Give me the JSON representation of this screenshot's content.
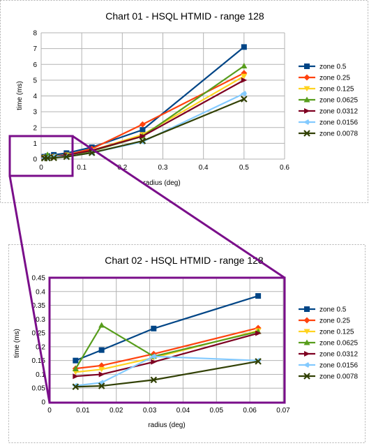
{
  "colors": {
    "border": "#b0b0b0",
    "grid": "#b3b3b3",
    "axis": "#b3b3b3",
    "callout": "#7a0e8a",
    "text": "#000000"
  },
  "chart_data": [
    {
      "type": "line",
      "title": "Chart 01 - HSQL HTMID - range 128",
      "xlabel": "radius (deg)",
      "ylabel": "time (ms)",
      "xlim": [
        0,
        0.6
      ],
      "ylim": [
        0,
        8
      ],
      "xticks": [
        "0",
        "0.1",
        "0.2",
        "0.3",
        "0.4",
        "0.5",
        "0.6"
      ],
      "yticks": [
        "0",
        "1",
        "2",
        "3",
        "4",
        "5",
        "6",
        "7",
        "8"
      ],
      "grid": true,
      "legend": "right",
      "series": [
        {
          "name": "zone 0.5",
          "color": "#004586",
          "marker": "square",
          "x": [
            0.0078,
            0.0156,
            0.0312,
            0.0625,
            0.125,
            0.25,
            0.5
          ],
          "y": [
            0.15,
            0.19,
            0.27,
            0.38,
            0.75,
            1.85,
            7.1
          ]
        },
        {
          "name": "zone 0.25",
          "color": "#ff420e",
          "marker": "diamond",
          "x": [
            0.0078,
            0.0156,
            0.0312,
            0.0625,
            0.125,
            0.25,
            0.5
          ],
          "y": [
            0.12,
            0.13,
            0.17,
            0.27,
            0.65,
            2.2,
            5.45
          ]
        },
        {
          "name": "zone 0.125",
          "color": "#ffd320",
          "marker": "triangle-down",
          "x": [
            0.0078,
            0.0156,
            0.0312,
            0.0625,
            0.125,
            0.25,
            0.5
          ],
          "y": [
            0.11,
            0.12,
            0.16,
            0.26,
            0.55,
            1.55,
            5.25
          ]
        },
        {
          "name": "zone 0.0625",
          "color": "#579d1c",
          "marker": "triangle-up",
          "x": [
            0.0078,
            0.0156,
            0.0312,
            0.0625,
            0.125,
            0.25,
            0.5
          ],
          "y": [
            0.12,
            0.28,
            0.16,
            0.25,
            0.5,
            1.45,
            5.9
          ]
        },
        {
          "name": "zone 0.0312",
          "color": "#7e0021",
          "marker": "arrow-right",
          "x": [
            0.0078,
            0.0156,
            0.0312,
            0.0625,
            0.125,
            0.25,
            0.5
          ],
          "y": [
            0.095,
            0.1,
            0.145,
            0.25,
            0.55,
            1.45,
            5.0
          ]
        },
        {
          "name": "zone 0.0156",
          "color": "#83caff",
          "marker": "diamond-left",
          "x": [
            0.0078,
            0.0156,
            0.0312,
            0.0625,
            0.125,
            0.25,
            0.5
          ],
          "y": [
            0.06,
            0.07,
            0.16,
            0.15,
            0.4,
            1.1,
            4.15
          ]
        },
        {
          "name": "zone 0.0078",
          "color": "#314004",
          "marker": "x",
          "x": [
            0.0078,
            0.0156,
            0.0312,
            0.0625,
            0.125,
            0.25,
            0.5
          ],
          "y": [
            0.055,
            0.06,
            0.08,
            0.148,
            0.4,
            1.15,
            3.8
          ]
        }
      ]
    },
    {
      "type": "line",
      "title": "Chart 02 - HSQL HTMID - range 128",
      "xlabel": "radius (deg)",
      "ylabel": "time (ms)",
      "xlim": [
        0,
        0.07
      ],
      "ylim": [
        0,
        0.45
      ],
      "xticks": [
        "0",
        "0.01",
        "0.02",
        "0.03",
        "0.04",
        "0.05",
        "0.06",
        "0.07"
      ],
      "yticks": [
        "0",
        "0.05",
        "0.1",
        "0.15",
        "0.2",
        "0.25",
        "0.3",
        "0.35",
        "0.4",
        "0.45"
      ],
      "grid": true,
      "legend": "right",
      "series": [
        {
          "name": "zone 0.5",
          "color": "#004586",
          "marker": "square",
          "x": [
            0.0078,
            0.0156,
            0.0312,
            0.0625
          ],
          "y": [
            0.15,
            0.188,
            0.266,
            0.384
          ]
        },
        {
          "name": "zone 0.25",
          "color": "#ff420e",
          "marker": "diamond",
          "x": [
            0.0078,
            0.0156,
            0.0312,
            0.0625
          ],
          "y": [
            0.121,
            0.132,
            0.174,
            0.268
          ]
        },
        {
          "name": "zone 0.125",
          "color": "#ffd320",
          "marker": "triangle-down",
          "x": [
            0.0078,
            0.0156,
            0.0312,
            0.0625
          ],
          "y": [
            0.108,
            0.118,
            0.16,
            0.258
          ]
        },
        {
          "name": "zone 0.0625",
          "color": "#579d1c",
          "marker": "triangle-up",
          "x": [
            0.0078,
            0.0156,
            0.0312,
            0.0625
          ],
          "y": [
            0.12,
            0.278,
            0.165,
            0.255
          ]
        },
        {
          "name": "zone 0.0312",
          "color": "#7e0021",
          "marker": "arrow-right",
          "x": [
            0.0078,
            0.0156,
            0.0312,
            0.0625
          ],
          "y": [
            0.093,
            0.1,
            0.145,
            0.249
          ]
        },
        {
          "name": "zone 0.0156",
          "color": "#83caff",
          "marker": "diamond-left",
          "x": [
            0.0078,
            0.0156,
            0.0312,
            0.0625
          ],
          "y": [
            0.059,
            0.07,
            0.165,
            0.15
          ]
        },
        {
          "name": "zone 0.0078",
          "color": "#314004",
          "marker": "x",
          "x": [
            0.0078,
            0.0156,
            0.0312,
            0.0625
          ],
          "y": [
            0.055,
            0.058,
            0.08,
            0.147
          ]
        }
      ]
    }
  ]
}
